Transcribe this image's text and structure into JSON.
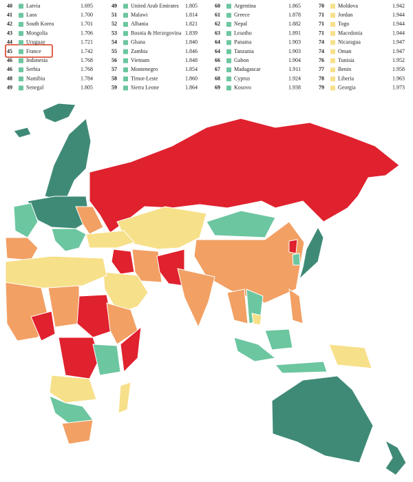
{
  "table": {
    "columns": [
      {
        "color": "#6cc6a0",
        "rows": [
          [
            "40",
            "Latvia",
            "1.695"
          ],
          [
            "41",
            "Laos",
            "1.700"
          ],
          [
            "42",
            "South Korea",
            "1.701"
          ],
          [
            "43",
            "Mongolia",
            "1.706"
          ],
          [
            "44",
            "Uruguay",
            "1.721"
          ],
          [
            "45",
            "France",
            "1.742"
          ],
          [
            "46",
            "Indonesia",
            "1.768"
          ],
          [
            "46",
            "Serbia",
            "1.768"
          ],
          [
            "48",
            "Namibia",
            "1.784"
          ],
          [
            "49",
            "Senegal",
            "1.805"
          ]
        ]
      },
      {
        "color": "#6cc6a0",
        "rows": [
          [
            "49",
            "United Arab Emirates",
            "1.805"
          ],
          [
            "51",
            "Malawi",
            "1.814"
          ],
          [
            "52",
            "Albania",
            "1.821"
          ],
          [
            "53",
            "Bosnia & Herzegovina",
            "1.839"
          ],
          [
            "54",
            "Ghana",
            "1.840"
          ],
          [
            "55",
            "Zambia",
            "1.846"
          ],
          [
            "56",
            "Vietnam",
            "1.848"
          ],
          [
            "57",
            "Montenegro",
            "1.854"
          ],
          [
            "58",
            "Timor-Leste",
            "1.860"
          ],
          [
            "59",
            "Sierra Leone",
            "1.864"
          ]
        ]
      },
      {
        "color": "#6cc6a0",
        "rows": [
          [
            "60",
            "Argentina",
            "1.865"
          ],
          [
            "61",
            "Greece",
            "1.878"
          ],
          [
            "62",
            "Nepal",
            "1.882"
          ],
          [
            "63",
            "Lesotho",
            "1.891"
          ],
          [
            "64",
            "Panama",
            "1.903"
          ],
          [
            "64",
            "Tanzania",
            "1.903"
          ],
          [
            "66",
            "Gabon",
            "1.904"
          ],
          [
            "67",
            "Madagascar",
            "1.911"
          ],
          [
            "68",
            "Cyprus",
            "1.924"
          ],
          [
            "69",
            "Kosovo",
            "1.938"
          ]
        ]
      },
      {
        "color": "#f7e08a",
        "rows": [
          [
            "70",
            "Moldova",
            "1.942"
          ],
          [
            "71",
            "Jordan",
            "1.944"
          ],
          [
            "71",
            "Togo",
            "1.944"
          ],
          [
            "71",
            "Macedonia",
            "1.944"
          ],
          [
            "74",
            "Nicaragua",
            "1.947"
          ],
          [
            "74",
            "Oman",
            "1.947"
          ],
          [
            "76",
            "Tunisia",
            "1.952"
          ],
          [
            "77",
            "Benin",
            "1.958"
          ],
          [
            "78",
            "Liberia",
            "1.963"
          ],
          [
            "79",
            "Georgia",
            "1.973"
          ]
        ]
      }
    ]
  }
}
